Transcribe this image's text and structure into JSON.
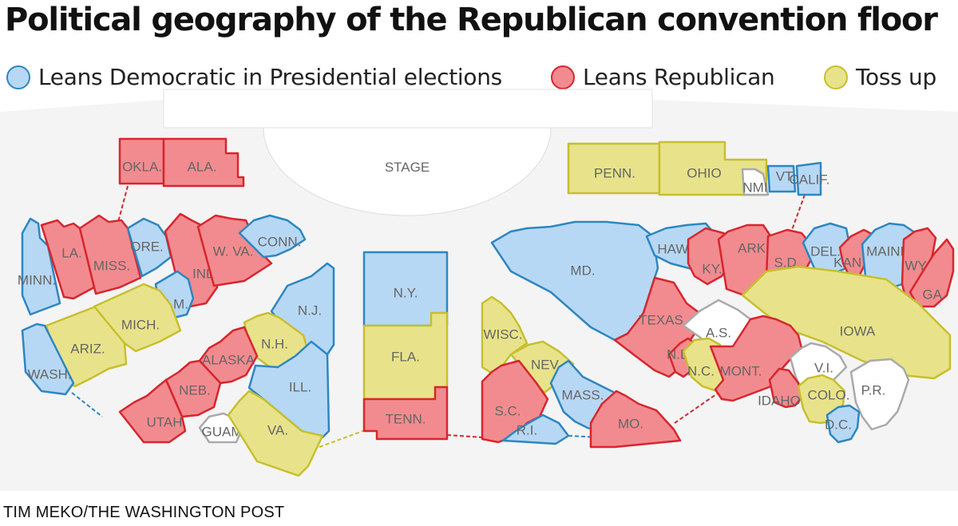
{
  "title": "Political geography of the Republican convention floor",
  "legend": [
    {
      "label": "Leans Democratic in Presidential elections",
      "fill": "#b7d8f4",
      "stroke": "#2e86c1"
    },
    {
      "label": "Leans Republican",
      "fill": "#f28b8f",
      "stroke": "#d7262e"
    },
    {
      "label": "Toss up",
      "fill": "#e8e38a",
      "stroke": "#c7bf2e"
    }
  ],
  "stage_label": "STAGE",
  "colors": {
    "dem_fill": "#b7d8f4",
    "dem_stroke": "#2e86c1",
    "rep_fill": "#f28b8f",
    "rep_stroke": "#d7262e",
    "toss_fill": "#e8e38a",
    "toss_stroke": "#c7bf2e",
    "none_fill": "#ffffff",
    "none_stroke": "#aaaaaa",
    "floor": "#f2f2f2"
  },
  "delegations": [
    {
      "name": "OKLA.",
      "lean": "rep"
    },
    {
      "name": "ALA.",
      "lean": "rep"
    },
    {
      "name": "MINN.",
      "lean": "dem"
    },
    {
      "name": "LA.",
      "lean": "rep"
    },
    {
      "name": "MISS.",
      "lean": "rep"
    },
    {
      "name": "ORE.",
      "lean": "dem"
    },
    {
      "name": "IND.",
      "lean": "rep"
    },
    {
      "name": "W. VA.",
      "lean": "rep"
    },
    {
      "name": "CONN.",
      "lean": "dem"
    },
    {
      "name": "N.M.",
      "lean": "dem"
    },
    {
      "name": "ARIZ.",
      "lean": "toss"
    },
    {
      "name": "MICH.",
      "lean": "toss"
    },
    {
      "name": "WASH.",
      "lean": "dem"
    },
    {
      "name": "N.J.",
      "lean": "dem"
    },
    {
      "name": "N.H.",
      "lean": "toss"
    },
    {
      "name": "ALASKA",
      "lean": "rep"
    },
    {
      "name": "ILL.",
      "lean": "dem"
    },
    {
      "name": "NEB.",
      "lean": "rep"
    },
    {
      "name": "UTAH",
      "lean": "rep"
    },
    {
      "name": "GUAM",
      "lean": "none"
    },
    {
      "name": "VA.",
      "lean": "toss"
    },
    {
      "name": "N.Y.",
      "lean": "dem"
    },
    {
      "name": "FLA.",
      "lean": "toss"
    },
    {
      "name": "TENN.",
      "lean": "rep"
    },
    {
      "name": "WISC.",
      "lean": "toss"
    },
    {
      "name": "NEV.",
      "lean": "toss"
    },
    {
      "name": "S.C.",
      "lean": "rep"
    },
    {
      "name": "MASS.",
      "lean": "dem"
    },
    {
      "name": "R.I.",
      "lean": "dem"
    },
    {
      "name": "MO.",
      "lean": "rep"
    },
    {
      "name": "PENN.",
      "lean": "toss"
    },
    {
      "name": "OHIO",
      "lean": "toss"
    },
    {
      "name": "NMI",
      "lean": "none"
    },
    {
      "name": "VT.",
      "lean": "dem"
    },
    {
      "name": "CALIF.",
      "lean": "dem"
    },
    {
      "name": "MD.",
      "lean": "dem"
    },
    {
      "name": "HAWAII",
      "lean": "dem"
    },
    {
      "name": "KY.",
      "lean": "rep"
    },
    {
      "name": "ARK.",
      "lean": "rep"
    },
    {
      "name": "S.D.",
      "lean": "rep"
    },
    {
      "name": "DEL.",
      "lean": "dem"
    },
    {
      "name": "KAN.",
      "lean": "rep"
    },
    {
      "name": "MAINE",
      "lean": "dem"
    },
    {
      "name": "WYO.",
      "lean": "rep"
    },
    {
      "name": "GA.",
      "lean": "rep"
    },
    {
      "name": "TEXAS",
      "lean": "rep"
    },
    {
      "name": "IOWA",
      "lean": "toss"
    },
    {
      "name": "A.S.",
      "lean": "none"
    },
    {
      "name": "N.D.",
      "lean": "rep"
    },
    {
      "name": "N.C.",
      "lean": "toss"
    },
    {
      "name": "MONT.",
      "lean": "rep"
    },
    {
      "name": "V.I.",
      "lean": "none"
    },
    {
      "name": "IDAHO",
      "lean": "rep"
    },
    {
      "name": "COLO.",
      "lean": "toss"
    },
    {
      "name": "P.R.",
      "lean": "none"
    },
    {
      "name": "D.C.",
      "lean": "dem"
    }
  ],
  "credit": "TIM MEKO/THE WASHINGTON POST"
}
